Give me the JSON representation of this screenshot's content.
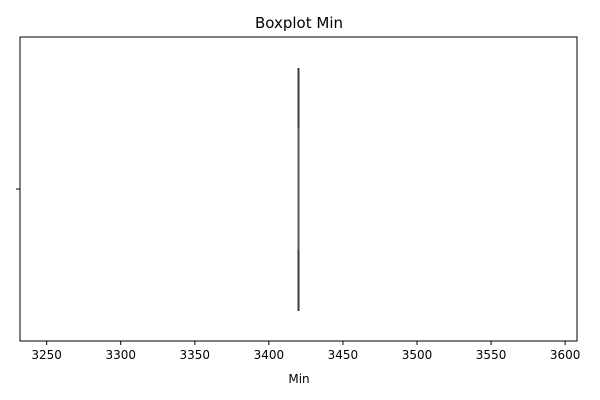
{
  "chart_data": {
    "type": "boxplot",
    "title": "Boxplot Min",
    "xlabel": "Min",
    "ylabel": "",
    "orientation": "horizontal",
    "xlim": [
      3232,
      3608
    ],
    "xticks": [
      3250,
      3300,
      3350,
      3400,
      3450,
      3500,
      3550,
      3600
    ],
    "box": {
      "min": 3420,
      "q1": 3420,
      "median": 3420,
      "q3": 3420,
      "max": 3420
    },
    "box_color": "#3a3a3a",
    "grid": false
  }
}
